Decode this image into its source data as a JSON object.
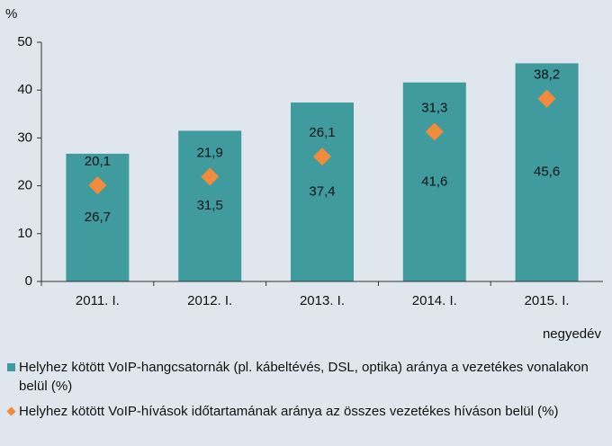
{
  "chart_data": {
    "type": "bar",
    "y_label": "%",
    "x_label": "negyedév",
    "categories": [
      "2011. I.",
      "2012. I.",
      "2013. I.",
      "2014. I.",
      "2015. I."
    ],
    "series": [
      {
        "name": "Helyhez kötött VoIP-hangcsatornák (pl. kábeltévés, DSL, optika) aránya a vezetékes vonalakon belül (%)",
        "color": "#3f9b9e",
        "marker": "bar",
        "values": [
          26.7,
          31.5,
          37.4,
          41.6,
          45.6
        ],
        "value_labels": [
          "26,7",
          "31,5",
          "37,4",
          "41,6",
          "45,6"
        ]
      },
      {
        "name": "Helyhez kötött VoIP-hívások időtartamának aránya az összes vezetékes híváson belül (%)",
        "color": "#f28c3c",
        "marker": "diamond",
        "values": [
          20.1,
          21.9,
          26.1,
          31.3,
          38.2
        ],
        "value_labels": [
          "20,1",
          "21,9",
          "26,1",
          "31,3",
          "38,2"
        ]
      }
    ],
    "ylim": [
      0,
      50
    ],
    "yticks": [
      0,
      10,
      20,
      30,
      40,
      50
    ],
    "grid": false
  }
}
